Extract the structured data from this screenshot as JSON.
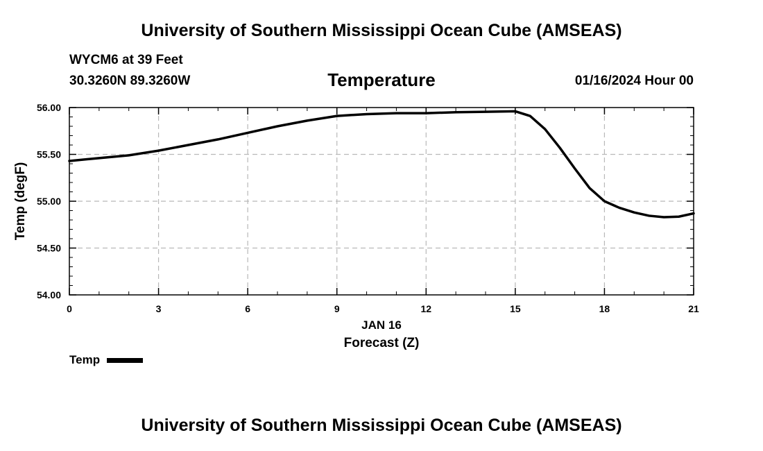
{
  "header": {
    "title": "University of Southern Mississippi Ocean Cube (AMSEAS)",
    "station": "WYCM6 at 39 Feet",
    "coordinates": "30.3260N  89.3260W",
    "variable": "Temperature",
    "datetime": "01/16/2024 Hour 00"
  },
  "footer": {
    "title": "University of Southern Mississippi Ocean Cube (AMSEAS)"
  },
  "legend": {
    "label": "Temp"
  },
  "chart_data": {
    "type": "line",
    "title": "Temperature",
    "xlabel": "Forecast (Z)",
    "xdate_label": "JAN 16",
    "ylabel": "Temp (degF)",
    "xlim": [
      0,
      21
    ],
    "ylim": [
      54.0,
      56.0
    ],
    "xticks": [
      0,
      3,
      6,
      9,
      12,
      15,
      18,
      21
    ],
    "xtick_labels": [
      "0",
      "3",
      "6",
      "9",
      "12",
      "15",
      "18",
      "21"
    ],
    "yticks": [
      54.0,
      54.5,
      55.0,
      55.5,
      56.0
    ],
    "ytick_labels": [
      "54.00",
      "54.50",
      "55.00",
      "55.50",
      "56.00"
    ],
    "grid": true,
    "legend_position": "bottom-left",
    "series": [
      {
        "name": "Temp",
        "color": "#000000",
        "x": [
          0,
          1,
          2,
          3,
          4,
          5,
          6,
          7,
          8,
          9,
          10,
          11,
          12,
          13,
          14,
          15,
          15.5,
          16,
          16.5,
          17,
          17.5,
          18,
          18.5,
          19,
          19.5,
          20,
          20.5,
          21
        ],
        "y": [
          55.43,
          55.46,
          55.49,
          55.54,
          55.6,
          55.66,
          55.73,
          55.8,
          55.86,
          55.91,
          55.93,
          55.94,
          55.94,
          55.95,
          55.955,
          55.96,
          55.91,
          55.77,
          55.57,
          55.35,
          55.14,
          55.0,
          54.93,
          54.88,
          54.845,
          54.83,
          54.835,
          54.87
        ]
      }
    ]
  }
}
